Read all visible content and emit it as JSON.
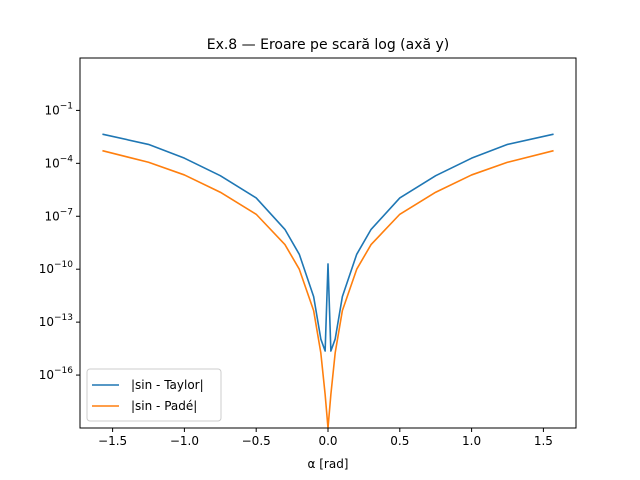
{
  "chart_data": {
    "type": "line",
    "title": "Ex.8 — Eroare pe scară log (axă y)",
    "xlabel": "α [rad]",
    "ylabel": "",
    "xlim": [
      -1.727,
      1.727
    ],
    "ylim_exponent": [
      -19,
      1.97
    ],
    "yscale": "log",
    "grid": false,
    "legend": {
      "position": "lower-left"
    },
    "x_ticks": [
      {
        "value": -1.5,
        "label": "−1.5"
      },
      {
        "value": -1.0,
        "label": "−1.0"
      },
      {
        "value": -0.5,
        "label": "−0.5"
      },
      {
        "value": 0.0,
        "label": "0.0"
      },
      {
        "value": 0.5,
        "label": "0.5"
      },
      {
        "value": 1.0,
        "label": "1.0"
      },
      {
        "value": 1.5,
        "label": "1.5"
      }
    ],
    "y_ticks": [
      {
        "exponent": -1,
        "base": "10",
        "sup": "−1"
      },
      {
        "exponent": -4,
        "base": "10",
        "sup": "−4"
      },
      {
        "exponent": -7,
        "base": "10",
        "sup": "−7"
      },
      {
        "exponent": -10,
        "base": "10",
        "sup": "−10"
      },
      {
        "exponent": -13,
        "base": "10",
        "sup": "−13"
      },
      {
        "exponent": -16,
        "base": "10",
        "sup": "−16"
      }
    ],
    "series": [
      {
        "name": "|sin - Taylor|",
        "color": "#1f77b4",
        "points": [
          [
            -1.5708,
            0.0045
          ],
          [
            -1.25,
            0.00118
          ],
          [
            -1.0,
            0.000196
          ],
          [
            -0.75,
            1.99e-05
          ],
          [
            -0.5,
            1.09e-06
          ],
          [
            -0.3,
            1.8e-08
          ],
          [
            -0.2,
            7e-10
          ],
          [
            -0.1,
            2.8e-12
          ],
          [
            -0.05,
            1.1e-14
          ],
          [
            -0.02,
            2.3e-15
          ],
          [
            0.0,
            2e-10
          ],
          [
            0.02,
            2.3e-15
          ],
          [
            0.05,
            1.1e-14
          ],
          [
            0.1,
            2.8e-12
          ],
          [
            0.2,
            7e-10
          ],
          [
            0.3,
            1.8e-08
          ],
          [
            0.5,
            1.09e-06
          ],
          [
            0.75,
            1.99e-05
          ],
          [
            1.0,
            0.000196
          ],
          [
            1.25,
            0.00118
          ],
          [
            1.5708,
            0.0045
          ]
        ]
      },
      {
        "name": "|sin - Padé|",
        "color": "#ff7f0e",
        "points": [
          [
            -1.5708,
            0.00052
          ],
          [
            -1.25,
            0.000115
          ],
          [
            -1.0,
            2.2e-05
          ],
          [
            -0.75,
            2.3e-06
          ],
          [
            -0.5,
            1.3e-07
          ],
          [
            -0.3,
            2.5e-09
          ],
          [
            -0.2,
            1e-10
          ],
          [
            -0.1,
            4.5e-13
          ],
          [
            -0.05,
            1.8e-15
          ],
          [
            -0.02,
            8e-18
          ],
          [
            0.0,
            1e-19
          ],
          [
            0.02,
            8e-18
          ],
          [
            0.05,
            1.8e-15
          ],
          [
            0.1,
            4.5e-13
          ],
          [
            0.2,
            1e-10
          ],
          [
            0.3,
            2.5e-09
          ],
          [
            0.5,
            1.3e-07
          ],
          [
            0.75,
            2.3e-06
          ],
          [
            1.0,
            2.2e-05
          ],
          [
            1.25,
            0.000115
          ],
          [
            1.5708,
            0.00052
          ]
        ]
      }
    ]
  }
}
